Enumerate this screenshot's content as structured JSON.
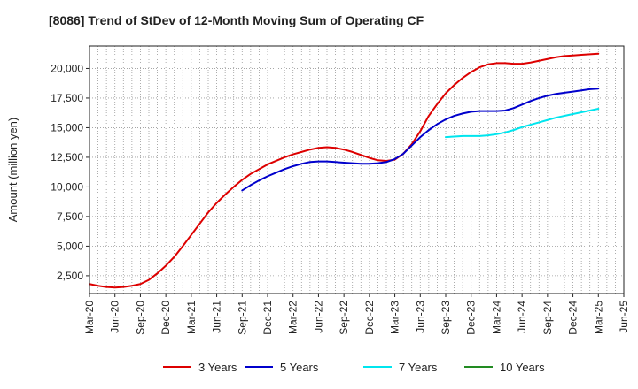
{
  "chart_data": {
    "type": "line",
    "title": "[8086]  Trend of StDev of 12-Month Moving Sum of Operating CF",
    "xlabel": "",
    "ylabel": "Amount (million yen)",
    "ylim": [
      1000,
      21900
    ],
    "yticks": [
      2500,
      5000,
      7500,
      10000,
      12500,
      15000,
      17500,
      20000
    ],
    "ytick_labels": [
      "2,500",
      "5,000",
      "7,500",
      "10,000",
      "12,500",
      "15,000",
      "17,500",
      "20,000"
    ],
    "xticks": [
      "Mar-20",
      "Jun-20",
      "Sep-20",
      "Dec-20",
      "Mar-21",
      "Jun-21",
      "Sep-21",
      "Dec-21",
      "Mar-22",
      "Jun-22",
      "Sep-22",
      "Dec-22",
      "Mar-23",
      "Jun-23",
      "Sep-23",
      "Dec-23",
      "Mar-24",
      "Jun-24",
      "Sep-24",
      "Dec-24",
      "Mar-25",
      "Jun-25"
    ],
    "x_unit": "month index from Mar-20",
    "grid": true,
    "legend_position": "bottom",
    "series": [
      {
        "name": "3 Years",
        "color": "#dd0000",
        "x": [
          0,
          1,
          2,
          3,
          4,
          5,
          6,
          7,
          8,
          9,
          10,
          11,
          12,
          13,
          14,
          15,
          16,
          17,
          18,
          19,
          20,
          21,
          22,
          23,
          24,
          25,
          26,
          27,
          28,
          29,
          30,
          31,
          32,
          33,
          34,
          35,
          36,
          37,
          38,
          39,
          40,
          41,
          42,
          43,
          44,
          45,
          46,
          47,
          48,
          49,
          50,
          51,
          52,
          53,
          54,
          55,
          56,
          57,
          58,
          59,
          60
        ],
        "values": [
          1800,
          1650,
          1550,
          1500,
          1550,
          1650,
          1800,
          2150,
          2700,
          3350,
          4100,
          5000,
          5950,
          6900,
          7850,
          8650,
          9350,
          10000,
          10600,
          11100,
          11500,
          11900,
          12200,
          12500,
          12750,
          12950,
          13150,
          13300,
          13350,
          13300,
          13150,
          12950,
          12700,
          12450,
          12250,
          12200,
          12300,
          12800,
          13600,
          14700,
          16000,
          17000,
          17900,
          18600,
          19200,
          19700,
          20100,
          20350,
          20450,
          20450,
          20400,
          20400,
          20500,
          20650,
          20800,
          20950,
          21050,
          21100,
          21150,
          21200,
          21250
        ]
      },
      {
        "name": "5 Years",
        "color": "#0000cc",
        "x": [
          18,
          19,
          20,
          21,
          22,
          23,
          24,
          25,
          26,
          27,
          28,
          29,
          30,
          31,
          32,
          33,
          34,
          35,
          36,
          37,
          38,
          39,
          40,
          41,
          42,
          43,
          44,
          45,
          46,
          47,
          48,
          49,
          50,
          51,
          52,
          53,
          54,
          55,
          56,
          57,
          58,
          59,
          60
        ],
        "values": [
          9700,
          10150,
          10550,
          10900,
          11200,
          11500,
          11750,
          11950,
          12100,
          12150,
          12150,
          12100,
          12050,
          12000,
          11950,
          11950,
          12000,
          12100,
          12350,
          12800,
          13500,
          14200,
          14800,
          15300,
          15700,
          16000,
          16200,
          16350,
          16400,
          16400,
          16400,
          16450,
          16650,
          16950,
          17250,
          17500,
          17700,
          17850,
          17950,
          18050,
          18150,
          18250,
          18300
        ]
      },
      {
        "name": "7 Years",
        "color": "#00e5ee",
        "x": [
          42,
          43,
          44,
          45,
          46,
          47,
          48,
          49,
          50,
          51,
          52,
          53,
          54,
          55,
          56,
          57,
          58,
          59,
          60
        ],
        "values": [
          14200,
          14250,
          14300,
          14300,
          14300,
          14350,
          14450,
          14600,
          14800,
          15050,
          15250,
          15450,
          15650,
          15850,
          16000,
          16150,
          16300,
          16450,
          16600
        ]
      },
      {
        "name": "10 Years",
        "color": "#228b22",
        "x": [],
        "values": []
      }
    ]
  }
}
